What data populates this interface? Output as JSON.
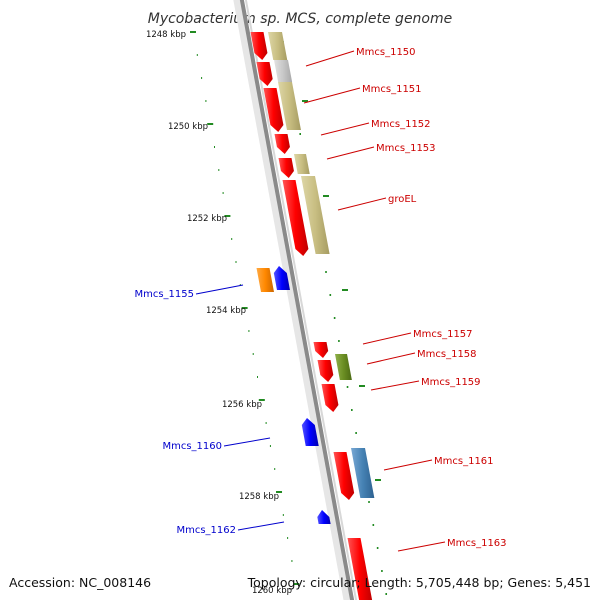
{
  "title": "Mycobacterium sp. MCS, complete genome",
  "scale_ticks": [
    {
      "label": "1248 kbp"
    },
    {
      "label": "1250 kbp"
    },
    {
      "label": "1252 kbp"
    },
    {
      "label": "1254 kbp"
    },
    {
      "label": "1256 kbp"
    },
    {
      "label": "1258 kbp"
    },
    {
      "label": "1260 kbp"
    }
  ],
  "gene_labels": [
    {
      "text": "Mmcs_1150",
      "color": "#cc0000"
    },
    {
      "text": "Mmcs_1151",
      "color": "#cc0000"
    },
    {
      "text": "Mmcs_1152",
      "color": "#cc0000"
    },
    {
      "text": "Mmcs_1153",
      "color": "#cc0000"
    },
    {
      "text": "groEL",
      "color": "#cc0000"
    },
    {
      "text": "Mmcs_1155",
      "color": "#0000cc"
    },
    {
      "text": "Mmcs_1157",
      "color": "#cc0000"
    },
    {
      "text": "Mmcs_1158",
      "color": "#cc0000"
    },
    {
      "text": "Mmcs_1159",
      "color": "#cc0000"
    },
    {
      "text": "Mmcs_1160",
      "color": "#0000cc"
    },
    {
      "text": "Mmcs_1161",
      "color": "#cc0000"
    },
    {
      "text": "Mmcs_1162",
      "color": "#0000cc"
    },
    {
      "text": "Mmcs_1163",
      "color": "#cc0000"
    }
  ],
  "colors": {
    "forward_cds": "#ff0000",
    "reverse_cds": "#0000ff",
    "orange_feature": "#ff8800",
    "khaki_feature": "#c8be82",
    "olive_feature": "#6b8e23",
    "steelblue_feature": "#4682b4",
    "gray_feature": "#c8c8c8",
    "backbone": "#808080",
    "ticks": "#228b22"
  },
  "footer": {
    "accession": "Accession: NC_008146",
    "summary": "Topology: circular; Length: 5,705,448 bp; Genes: 5,451"
  }
}
